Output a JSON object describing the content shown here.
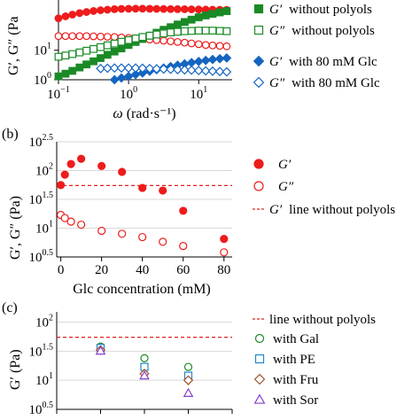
{
  "chart_data": [
    {
      "type": "scatter",
      "xscale": "log",
      "yscale": "log",
      "xlim": [
        0.1,
        30
      ],
      "ylim": [
        1,
        500
      ],
      "xlabel_symbol": "ω",
      "xlabel_unit": "(rad·s⁻¹)",
      "ylabel": "G′, G″ (Pa",
      "xticks": [
        {
          "v": 0.1,
          "base": "10",
          "exp": "−1"
        },
        {
          "v": 1,
          "base": "10",
          "exp": "0"
        },
        {
          "v": 10,
          "base": "10",
          "exp": "1"
        }
      ],
      "yticks": [
        {
          "v": 1,
          "base": "10",
          "exp": "0"
        },
        {
          "v": 10,
          "base": "10",
          "exp": "1"
        }
      ],
      "series": [
        {
          "name": "G′ without polyols",
          "sym": "G′",
          "txt": "without polyols",
          "marker": "circle",
          "fill": true,
          "color": "#ee1c1c",
          "x": [
            0.1,
            0.126,
            0.158,
            0.2,
            0.251,
            0.316,
            0.398,
            0.5,
            0.63,
            0.79,
            1,
            1.26,
            1.58,
            2,
            2.51,
            3.16,
            3.98,
            5,
            6.3,
            7.9,
            10,
            12.6,
            15.8,
            20,
            25.1
          ],
          "y": [
            120,
            140,
            160,
            180,
            196,
            212,
            225,
            235,
            244,
            250,
            253,
            254,
            254,
            253,
            251,
            249,
            247,
            245,
            243,
            241,
            239,
            237,
            235,
            233,
            231
          ]
        },
        {
          "name": "G″ without polyols",
          "sym": "G″",
          "txt": "without polyols",
          "marker": "circle",
          "fill": false,
          "color": "#ee1c1c",
          "x": [
            0.1,
            0.126,
            0.158,
            0.2,
            0.251,
            0.316,
            0.398,
            0.5,
            0.63,
            0.79,
            1,
            1.26,
            1.58,
            2,
            2.51,
            3.16,
            3.98,
            5,
            6.3,
            7.9,
            10,
            12.6,
            15.8,
            20,
            25.1
          ],
          "y": [
            30,
            30,
            30,
            30,
            30,
            29.5,
            29,
            28.5,
            28,
            27,
            26,
            25,
            24,
            23,
            22,
            21,
            20,
            19,
            18,
            17,
            16,
            15,
            14.5,
            14,
            13.5
          ]
        },
        {
          "name": "G′ without polyols",
          "sym": "G′",
          "txt": "without polyols",
          "marker": "square",
          "fill": true,
          "color": "#1a8a26",
          "x": [
            0.1,
            0.126,
            0.158,
            0.2,
            0.251,
            0.316,
            0.398,
            0.5,
            0.63,
            0.79,
            1,
            1.26,
            1.58,
            2,
            2.51,
            3.16,
            3.98,
            5,
            6.3,
            7.9,
            10,
            12.6,
            15.8,
            20,
            25.1
          ],
          "y": [
            1.3,
            1.6,
            2.0,
            2.6,
            3.3,
            4.2,
            5.4,
            7,
            9,
            11.5,
            15,
            19,
            24,
            31,
            39,
            49,
            60,
            74,
            90,
            108,
            130,
            150,
            170,
            190,
            210
          ]
        },
        {
          "name": "G″ without polyols",
          "sym": "G″",
          "txt": "without polyols",
          "marker": "square",
          "fill": false,
          "color": "#1a8a26",
          "x": [
            0.1,
            0.126,
            0.158,
            0.2,
            0.251,
            0.316,
            0.398,
            0.5,
            0.63,
            0.79,
            1,
            1.26,
            1.58,
            2,
            2.51,
            3.16,
            3.98,
            5,
            6.3,
            7.9,
            10,
            12.6,
            15.8,
            20,
            25.1
          ],
          "y": [
            6.0,
            6.6,
            7.4,
            8.4,
            9.6,
            11,
            12.7,
            14.6,
            16.8,
            19.3,
            22,
            25,
            28,
            31,
            34,
            37,
            40,
            42,
            44,
            45,
            46,
            46,
            46,
            45,
            44
          ]
        },
        {
          "name": "G′ with 80 mM Glc",
          "sym": "G′",
          "txt": "with 80 mM Glc",
          "marker": "diamond",
          "fill": true,
          "color": "#1565c0",
          "x": [
            0.5,
            0.63,
            0.79,
            1,
            1.26,
            1.58,
            2,
            2.51,
            3.16,
            3.98,
            5,
            6.3,
            7.9,
            10,
            12.6,
            15.8,
            20,
            25.1
          ],
          "y": [
            0.85,
            1.0,
            1.15,
            1.3,
            1.5,
            1.7,
            1.95,
            2.2,
            2.5,
            2.8,
            3.1,
            3.45,
            3.8,
            4.15,
            4.5,
            4.85,
            5.15,
            5.45
          ]
        },
        {
          "name": "G″ with 80 mM Glc",
          "sym": "G″",
          "txt": "with 80 mM Glc",
          "marker": "diamond",
          "fill": false,
          "color": "#1565c0",
          "x": [
            0.4,
            0.5,
            0.63,
            0.79,
            1,
            1.26,
            1.58,
            2,
            2.51,
            3.16,
            3.98,
            5,
            6.3,
            7.9,
            10,
            12.6,
            15.8,
            20,
            25.1
          ],
          "y": [
            2.4,
            2.45,
            2.5,
            2.5,
            2.5,
            2.5,
            2.45,
            2.4,
            2.35,
            2.3,
            2.25,
            2.2,
            2.15,
            2.1,
            2.05,
            2.0,
            1.95,
            1.9,
            1.85
          ]
        }
      ]
    },
    {
      "type": "scatter",
      "panel_label": "(b)",
      "yscale": "log",
      "xlim": [
        -2,
        84
      ],
      "ylim": [
        3.1623,
        316.23
      ],
      "xlabel": "Glc concentration (mM)",
      "ylabel": "G′, G″ (Pa)",
      "xticks": [
        0,
        20,
        40,
        60,
        80
      ],
      "yticks": [
        {
          "v": 3.1623,
          "base": "10",
          "exp": "0.5"
        },
        {
          "v": 10,
          "base": "10",
          "exp": "1"
        },
        {
          "v": 31.623,
          "base": "10",
          "exp": "1.5"
        },
        {
          "v": 100,
          "base": "10",
          "exp": "2"
        },
        {
          "v": 316.23,
          "base": "10",
          "exp": "2.5"
        }
      ],
      "series": [
        {
          "name": "G′",
          "sym": "G′",
          "txt": "",
          "marker": "circle",
          "fill": true,
          "color": "#ee1c1c",
          "x": [
            0,
            2,
            5,
            10,
            20,
            30,
            40,
            50,
            60,
            80
          ],
          "y": [
            56,
            85,
            130,
            160,
            120,
            95,
            50,
            45,
            20,
            6.5
          ]
        },
        {
          "name": "G″",
          "sym": "G″",
          "txt": "",
          "marker": "circle",
          "fill": false,
          "color": "#ee1c1c",
          "x": [
            0,
            2,
            5,
            10,
            20,
            30,
            40,
            50,
            60,
            80
          ],
          "y": [
            17,
            15,
            13,
            11.5,
            9,
            8,
            7,
            5.8,
            4.9,
            3.8
          ]
        }
      ],
      "reference_line": {
        "name": "G′ line without polyols",
        "sym": "G′",
        "txt": "line without polyols",
        "y": 55,
        "color": "#e02020"
      }
    },
    {
      "type": "scatter",
      "panel_label": "(c)",
      "yscale": "log",
      "xlim": [
        0,
        4
      ],
      "ylim": [
        3.1623,
        150
      ],
      "ylabel": "G′ (Pa)",
      "yticks": [
        {
          "v": 3.1623,
          "base": "10",
          "exp": "0.5"
        },
        {
          "v": 10,
          "base": "10",
          "exp": "1"
        },
        {
          "v": 31.623,
          "base": "10",
          "exp": "1.5"
        },
        {
          "v": 100,
          "base": "10",
          "exp": "2"
        }
      ],
      "series": [
        {
          "name": "with Gal",
          "marker": "circle",
          "fill": false,
          "color": "#1a8a26",
          "x": [
            1,
            2,
            3
          ],
          "y": [
            38,
            24,
            17
          ]
        },
        {
          "name": "with PE",
          "marker": "square",
          "fill": false,
          "color": "#1e88c8",
          "x": [
            1,
            2,
            3
          ],
          "y": [
            36,
            17,
            12
          ]
        },
        {
          "name": "with Fru",
          "marker": "diamond",
          "fill": false,
          "color": "#a0522d",
          "x": [
            1,
            2,
            3
          ],
          "y": [
            33,
            13,
            10
          ]
        },
        {
          "name": "with Sor",
          "marker": "triangle",
          "fill": false,
          "color": "#8a3fcf",
          "x": [
            1,
            2,
            3
          ],
          "y": [
            32,
            12,
            6
          ]
        }
      ],
      "reference_line": {
        "name": "line without polyols",
        "y": 55,
        "color": "#e02020"
      }
    }
  ]
}
